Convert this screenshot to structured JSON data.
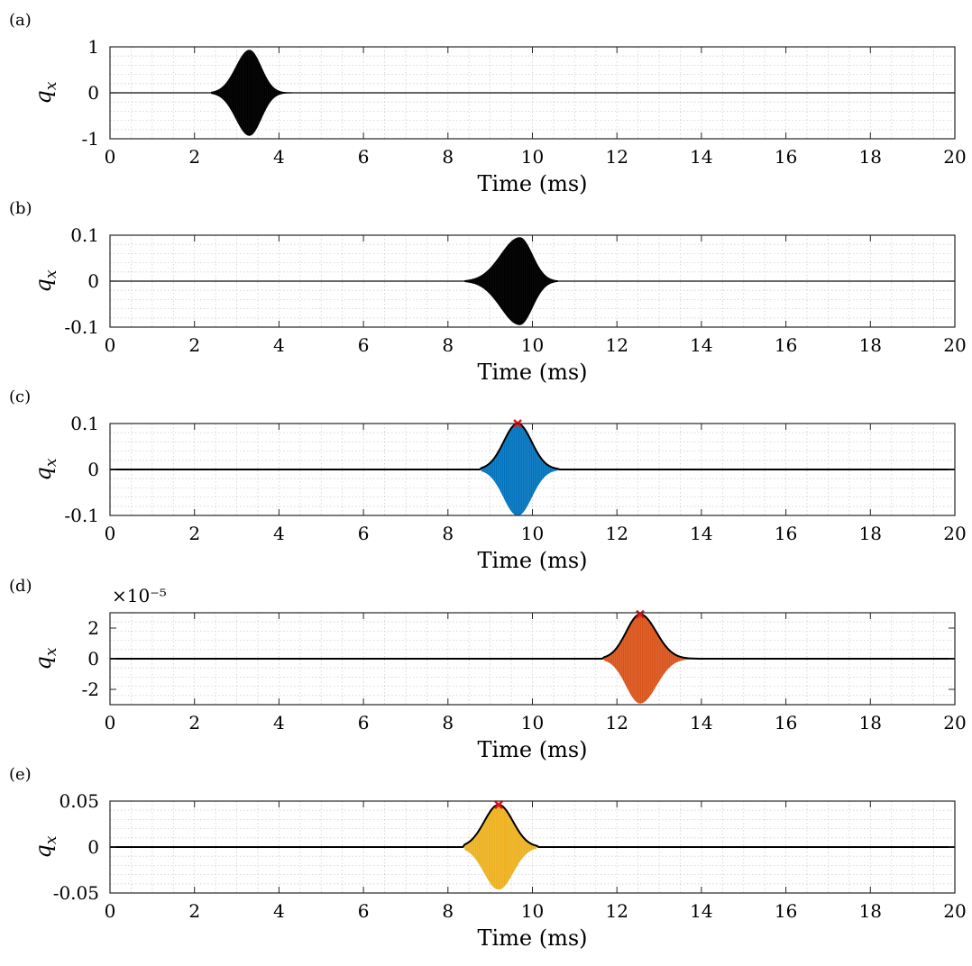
{
  "chart_data": [
    {
      "type": "line",
      "panel_label": "(a)",
      "xlabel": "Time (ms)",
      "ylabel_base": "q",
      "ylabel_sub": "x",
      "xlim": [
        0,
        20
      ],
      "ylim": [
        -1,
        1
      ],
      "xticks": [
        "0",
        "2",
        "4",
        "6",
        "8",
        "10",
        "12",
        "14",
        "16",
        "18",
        "20"
      ],
      "yticks": [
        "1",
        "0",
        "-1"
      ],
      "ytick_values": [
        1,
        0,
        -1
      ],
      "exponent": "",
      "grid": true,
      "signal": {
        "center": 3.3,
        "amplitude": 0.93,
        "rise_width": 0.32,
        "fall_width": 0.28,
        "start": 2.4,
        "end": 4.3,
        "color": "#000000"
      },
      "envelope": null
    },
    {
      "type": "line",
      "panel_label": "(b)",
      "xlabel": "Time (ms)",
      "ylabel_base": "q",
      "ylabel_sub": "x",
      "xlim": [
        0,
        20
      ],
      "ylim": [
        -0.1,
        0.1
      ],
      "xticks": [
        "0",
        "2",
        "4",
        "6",
        "8",
        "10",
        "12",
        "14",
        "16",
        "18",
        "20"
      ],
      "yticks": [
        "0.1",
        "0",
        "-0.1"
      ],
      "ytick_values": [
        0.1,
        0,
        -0.1
      ],
      "exponent": "",
      "grid": true,
      "signal": {
        "center": 9.7,
        "amplitude": 0.095,
        "rise_width": 0.45,
        "fall_width": 0.3,
        "start": 8.4,
        "end": 10.6,
        "color": "#000000"
      },
      "envelope": null
    },
    {
      "type": "line",
      "panel_label": "(c)",
      "xlabel": "Time (ms)",
      "ylabel_base": "q",
      "ylabel_sub": "x",
      "xlim": [
        0,
        20
      ],
      "ylim": [
        -0.1,
        0.1
      ],
      "xticks": [
        "0",
        "2",
        "4",
        "6",
        "8",
        "10",
        "12",
        "14",
        "16",
        "18",
        "20"
      ],
      "yticks": [
        "0.1",
        "0",
        "-0.1"
      ],
      "ytick_values": [
        0.1,
        0,
        -0.1
      ],
      "exponent": "",
      "grid": true,
      "signal": {
        "center": 9.65,
        "amplitude": 0.1,
        "rise_width": 0.33,
        "fall_width": 0.33,
        "start": 8.8,
        "end": 10.6,
        "color": "#0072BD"
      },
      "envelope": {
        "color": "#000000"
      },
      "peak_marker": {
        "x": 9.65,
        "y": 0.1,
        "color": "#E8131B"
      }
    },
    {
      "type": "line",
      "panel_label": "(d)",
      "xlabel": "Time (ms)",
      "ylabel_base": "q",
      "ylabel_sub": "x",
      "xlim": [
        0,
        20
      ],
      "ylim": [
        -3,
        3
      ],
      "xticks": [
        "0",
        "2",
        "4",
        "6",
        "8",
        "10",
        "12",
        "14",
        "16",
        "18",
        "20"
      ],
      "yticks": [
        "2",
        "0",
        "-2"
      ],
      "ytick_values": [
        2,
        0,
        -2
      ],
      "exponent": "×10⁻⁵",
      "grid": true,
      "signal": {
        "center": 12.55,
        "amplitude": 2.9,
        "rise_width": 0.33,
        "fall_width": 0.38,
        "start": 11.7,
        "end": 13.9,
        "color": "#D95319"
      },
      "envelope": {
        "color": "#000000"
      },
      "peak_marker": {
        "x": 12.55,
        "y": 2.9,
        "color": "#E8131B"
      }
    },
    {
      "type": "line",
      "panel_label": "(e)",
      "xlabel": "Time (ms)",
      "ylabel_base": "q",
      "ylabel_sub": "x",
      "xlim": [
        0,
        20
      ],
      "ylim": [
        -0.05,
        0.05
      ],
      "xticks": [
        "0",
        "2",
        "4",
        "6",
        "8",
        "10",
        "12",
        "14",
        "16",
        "18",
        "20"
      ],
      "yticks": [
        "0.05",
        "0",
        "-0.05"
      ],
      "ytick_values": [
        0.05,
        0,
        -0.05
      ],
      "exponent": "",
      "grid": true,
      "signal": {
        "center": 9.2,
        "amplitude": 0.046,
        "rise_width": 0.34,
        "fall_width": 0.34,
        "start": 8.4,
        "end": 10.1,
        "color": "#EDB120"
      },
      "envelope": {
        "color": "#000000"
      },
      "peak_marker": {
        "x": 9.2,
        "y": 0.046,
        "color": "#E8131B"
      }
    }
  ]
}
